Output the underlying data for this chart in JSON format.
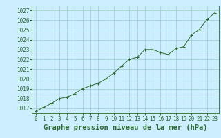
{
  "x": [
    0,
    1,
    2,
    3,
    4,
    5,
    6,
    7,
    8,
    9,
    10,
    11,
    12,
    13,
    14,
    15,
    16,
    17,
    18,
    19,
    20,
    21,
    22,
    23
  ],
  "y": [
    1016.7,
    1017.1,
    1017.5,
    1018.0,
    1018.15,
    1018.5,
    1019.0,
    1019.3,
    1019.55,
    1020.0,
    1020.6,
    1021.3,
    1022.0,
    1022.2,
    1023.0,
    1023.0,
    1022.7,
    1022.5,
    1023.1,
    1023.3,
    1024.5,
    1025.05,
    1026.1,
    1026.75
  ],
  "line_color": "#2d6a2d",
  "marker": "+",
  "marker_size": 4,
  "bg_color": "#cceeff",
  "grid_color": "#99cccc",
  "text_color": "#2d6a2d",
  "xlabel": "Graphe pression niveau de la mer (hPa)",
  "xlabel_fontsize": 7.5,
  "tick_fontsize": 5.5,
  "ylim": [
    1016.5,
    1027.5
  ],
  "xlim": [
    -0.5,
    23.5
  ],
  "yticks": [
    1017,
    1018,
    1019,
    1020,
    1021,
    1022,
    1023,
    1024,
    1025,
    1026,
    1027
  ],
  "xticks": [
    0,
    1,
    2,
    3,
    4,
    5,
    6,
    7,
    8,
    9,
    10,
    11,
    12,
    13,
    14,
    15,
    16,
    17,
    18,
    19,
    20,
    21,
    22,
    23
  ]
}
